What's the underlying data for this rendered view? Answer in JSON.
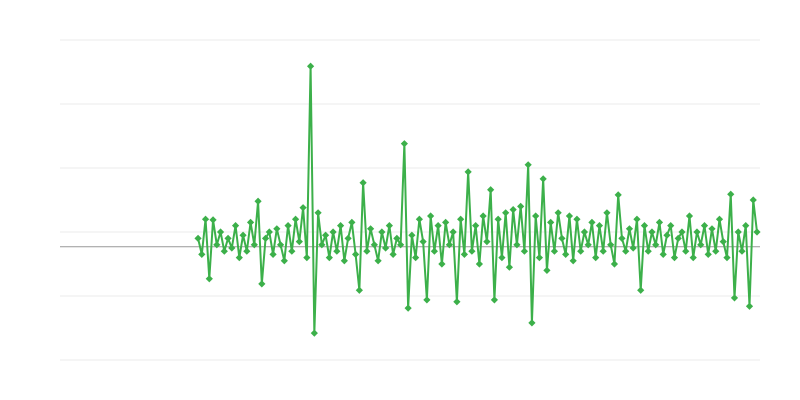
{
  "chart_data": {
    "type": "line",
    "color": "#3cb04a",
    "grid": true,
    "xlim": [
      -36.8,
      149.8
    ],
    "ylim": [
      -2,
      3
    ],
    "yticks": [
      -2,
      -1,
      0,
      1,
      2,
      3
    ],
    "baseline": -0.23,
    "x": [
      0,
      1,
      2,
      3,
      4,
      5,
      6,
      7,
      8,
      9,
      10,
      11,
      12,
      13,
      14,
      15,
      16,
      17,
      18,
      19,
      20,
      21,
      22,
      23,
      24,
      25,
      26,
      27,
      28,
      29,
      30,
      31,
      32,
      33,
      34,
      35,
      36,
      37,
      38,
      39,
      40,
      41,
      42,
      43,
      44,
      45,
      46,
      47,
      48,
      49,
      50,
      51,
      52,
      53,
      54,
      55,
      56,
      57,
      58,
      59,
      60,
      61,
      62,
      63,
      64,
      65,
      66,
      67,
      68,
      69,
      70,
      71,
      72,
      73,
      74,
      75,
      76,
      77,
      78,
      79,
      80,
      81,
      82,
      83,
      84,
      85,
      86,
      87,
      88,
      89,
      90,
      91,
      92,
      93,
      94,
      95,
      96,
      97,
      98,
      99,
      100,
      101,
      102,
      103,
      104,
      105,
      106,
      107,
      108,
      109,
      110,
      111,
      112,
      113,
      114,
      115,
      116,
      117,
      118,
      119,
      120,
      121,
      122,
      123,
      124,
      125,
      126,
      127,
      128,
      129,
      130,
      131,
      132,
      133,
      134,
      135,
      136,
      137,
      138,
      139,
      140,
      141,
      142,
      143,
      144,
      145,
      146,
      147,
      148,
      149
    ],
    "values": [
      -0.1,
      -0.35,
      0.2,
      -0.73,
      0.19,
      -0.2,
      0.0,
      -0.3,
      -0.1,
      -0.25,
      0.1,
      -0.4,
      -0.05,
      -0.3,
      0.15,
      -0.2,
      0.48,
      -0.81,
      -0.1,
      0.0,
      -0.35,
      0.05,
      -0.2,
      -0.45,
      0.1,
      -0.3,
      0.2,
      -0.15,
      0.38,
      -0.4,
      2.59,
      -1.58,
      0.3,
      -0.2,
      -0.05,
      -0.4,
      0.0,
      -0.3,
      0.1,
      -0.45,
      -0.1,
      0.15,
      -0.35,
      -0.91,
      0.77,
      -0.3,
      0.05,
      -0.2,
      -0.45,
      0.0,
      -0.25,
      0.1,
      -0.35,
      -0.1,
      -0.2,
      1.38,
      -1.19,
      -0.05,
      -0.4,
      0.2,
      -0.15,
      -1.06,
      0.25,
      -0.3,
      0.1,
      -0.5,
      0.15,
      -0.2,
      0.0,
      -1.09,
      0.2,
      -0.35,
      0.94,
      -0.3,
      0.1,
      -0.5,
      0.25,
      -0.15,
      0.66,
      -1.06,
      0.2,
      -0.4,
      0.3,
      -0.55,
      0.35,
      -0.2,
      0.4,
      -0.3,
      1.05,
      -1.42,
      0.25,
      -0.4,
      0.83,
      -0.6,
      0.15,
      -0.3,
      0.3,
      -0.1,
      -0.35,
      0.25,
      -0.45,
      0.2,
      -0.3,
      0.0,
      -0.2,
      0.15,
      -0.4,
      0.1,
      -0.3,
      0.3,
      -0.2,
      -0.5,
      0.58,
      -0.1,
      -0.3,
      0.05,
      -0.25,
      0.2,
      -0.91,
      0.1,
      -0.3,
      0.0,
      -0.2,
      0.15,
      -0.35,
      -0.05,
      0.1,
      -0.4,
      -0.1,
      0.0,
      -0.3,
      0.25,
      -0.4,
      0.0,
      -0.2,
      0.1,
      -0.35,
      0.05,
      -0.3,
      0.2,
      -0.15,
      -0.4,
      0.59,
      -1.03,
      0.0,
      -0.3,
      0.1,
      -1.16,
      0.5,
      0.0
    ]
  }
}
